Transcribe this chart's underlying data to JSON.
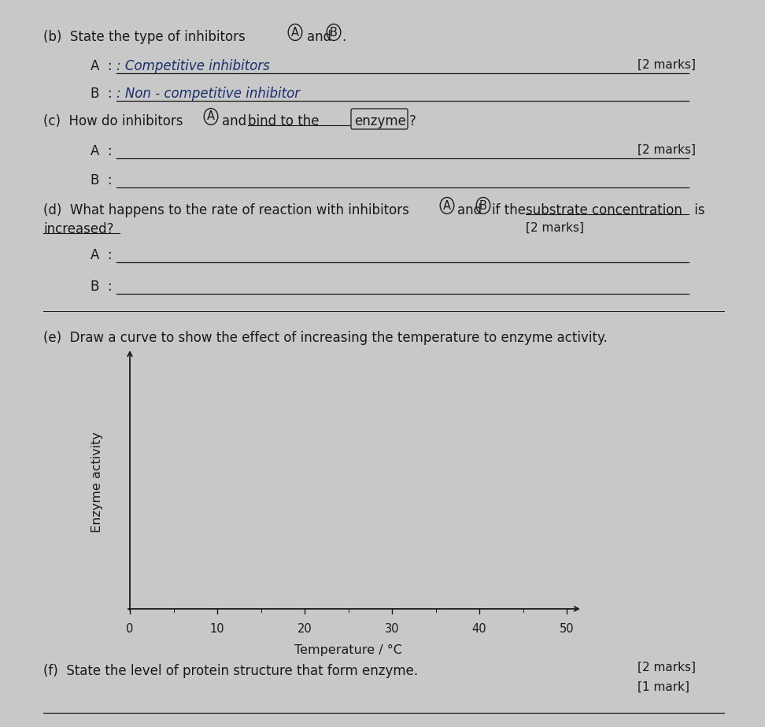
{
  "bg_color": "#c8c8c8",
  "text_color": "#1a1a1a",
  "handwriting_color": "#1a2f6e",
  "graph": {
    "xlabel": "Temperature / °C",
    "ylabel": "Enzyme activity",
    "xticks": [
      0,
      10,
      20,
      30,
      40,
      50
    ],
    "xmin": 0,
    "xmax": 56,
    "ymin": 0,
    "ymax": 1
  }
}
